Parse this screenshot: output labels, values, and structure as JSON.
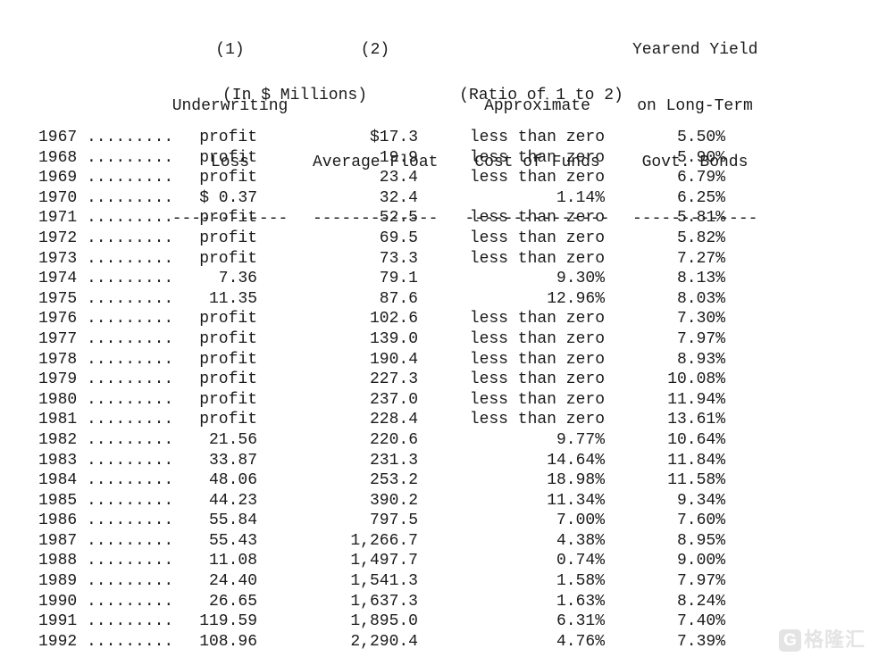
{
  "header": {
    "col1": {
      "line1": "(1)",
      "line2": "Underwriting",
      "line3": "Loss",
      "rule": "------------"
    },
    "col2": {
      "line1": "(2)",
      "line2": "",
      "line3": "Average Float",
      "rule": "-------------"
    },
    "col3": {
      "line1": "",
      "line2": "Approximate",
      "line3": "Cost of Funds",
      "rule": "---------------"
    },
    "col4": {
      "line1": "Yearend Yield",
      "line2": "on Long-Term",
      "line3": "Govt. Bonds",
      "rule": "-------------"
    },
    "units_millions": "(In $ Millions)",
    "units_ratio": "(Ratio of 1 to 2)"
  },
  "rows": [
    {
      "year": "1967",
      "dots": ".........",
      "loss": "profit",
      "float": "$17.3",
      "cost": "less than zero",
      "yield": "5.50%"
    },
    {
      "year": "1968",
      "dots": ".........",
      "loss": "profit",
      "float": "19.9",
      "cost": "less than zero",
      "yield": "5.90%"
    },
    {
      "year": "1969",
      "dots": ".........",
      "loss": "profit",
      "float": "23.4",
      "cost": "less than zero",
      "yield": "6.79%"
    },
    {
      "year": "1970",
      "dots": ".........",
      "loss": "$ 0.37",
      "float": "32.4",
      "cost": "1.14%",
      "yield": "6.25%"
    },
    {
      "year": "1971",
      "dots": ".........",
      "loss": "profit",
      "float": "52.5",
      "cost": "less than zero",
      "yield": "5.81%"
    },
    {
      "year": "1972",
      "dots": ".........",
      "loss": "profit",
      "float": "69.5",
      "cost": "less than zero",
      "yield": "5.82%"
    },
    {
      "year": "1973",
      "dots": ".........",
      "loss": "profit",
      "float": "73.3",
      "cost": "less than zero",
      "yield": "7.27%"
    },
    {
      "year": "1974",
      "dots": ".........",
      "loss": "7.36",
      "float": "79.1",
      "cost": "9.30%",
      "yield": "8.13%"
    },
    {
      "year": "1975",
      "dots": ".........",
      "loss": "11.35",
      "float": "87.6",
      "cost": "12.96%",
      "yield": "8.03%"
    },
    {
      "year": "1976",
      "dots": ".........",
      "loss": "profit",
      "float": "102.6",
      "cost": "less than zero",
      "yield": "7.30%"
    },
    {
      "year": "1977",
      "dots": ".........",
      "loss": "profit",
      "float": "139.0",
      "cost": "less than zero",
      "yield": "7.97%"
    },
    {
      "year": "1978",
      "dots": ".........",
      "loss": "profit",
      "float": "190.4",
      "cost": "less than zero",
      "yield": "8.93%"
    },
    {
      "year": "1979",
      "dots": ".........",
      "loss": "profit",
      "float": "227.3",
      "cost": "less than zero",
      "yield": "10.08%"
    },
    {
      "year": "1980",
      "dots": ".........",
      "loss": "profit",
      "float": "237.0",
      "cost": "less than zero",
      "yield": "11.94%"
    },
    {
      "year": "1981",
      "dots": ".........",
      "loss": "profit",
      "float": "228.4",
      "cost": "less than zero",
      "yield": "13.61%"
    },
    {
      "year": "1982",
      "dots": ".........",
      "loss": "21.56",
      "float": "220.6",
      "cost": "9.77%",
      "yield": "10.64%"
    },
    {
      "year": "1983",
      "dots": ".........",
      "loss": "33.87",
      "float": "231.3",
      "cost": "14.64%",
      "yield": "11.84%"
    },
    {
      "year": "1984",
      "dots": ".........",
      "loss": "48.06",
      "float": "253.2",
      "cost": "18.98%",
      "yield": "11.58%"
    },
    {
      "year": "1985",
      "dots": ".........",
      "loss": "44.23",
      "float": "390.2",
      "cost": "11.34%",
      "yield": "9.34%"
    },
    {
      "year": "1986",
      "dots": ".........",
      "loss": "55.84",
      "float": "797.5",
      "cost": "7.00%",
      "yield": "7.60%"
    },
    {
      "year": "1987",
      "dots": ".........",
      "loss": "55.43",
      "float": "1,266.7",
      "cost": "4.38%",
      "yield": "8.95%"
    },
    {
      "year": "1988",
      "dots": ".........",
      "loss": "11.08",
      "float": "1,497.7",
      "cost": "0.74%",
      "yield": "9.00%"
    },
    {
      "year": "1989",
      "dots": ".........",
      "loss": "24.40",
      "float": "1,541.3",
      "cost": "1.58%",
      "yield": "7.97%"
    },
    {
      "year": "1990",
      "dots": ".........",
      "loss": "26.65",
      "float": "1,637.3",
      "cost": "1.63%",
      "yield": "8.24%"
    },
    {
      "year": "1991",
      "dots": ".........",
      "loss": "119.59",
      "float": "1,895.0",
      "cost": "6.31%",
      "yield": "7.40%"
    },
    {
      "year": "1992",
      "dots": ".........",
      "loss": "108.96",
      "float": "2,290.4",
      "cost": "4.76%",
      "yield": "7.39%"
    }
  ],
  "watermark": {
    "logo": "G",
    "text": "格隆汇",
    "color": "#e4e4e4"
  },
  "colors": {
    "text": "#1a1a1a",
    "background": "#ffffff"
  }
}
